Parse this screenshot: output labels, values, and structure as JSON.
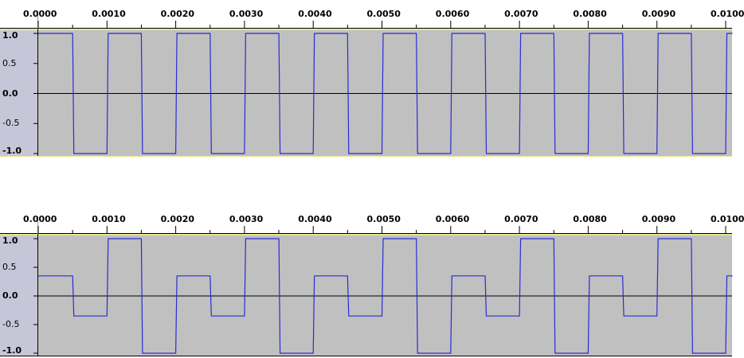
{
  "tracks": [
    {
      "ruler_labels": [
        "0.0000",
        "0.0010",
        "0.0020",
        "0.0030",
        "0.0040",
        "0.0050",
        "0.0060",
        "0.0070",
        "0.0080",
        "0.0090",
        "0.0100"
      ],
      "amplitude_labels": [
        "1.0",
        "0.5",
        "0.0",
        "-0.5",
        "-1.0"
      ],
      "waveform": {
        "type": "square",
        "period_s": 0.001,
        "levels": [
          1.0,
          -1.0
        ]
      }
    },
    {
      "ruler_labels": [
        "0.0000",
        "0.0010",
        "0.0020",
        "0.0030",
        "0.0040",
        "0.0050",
        "0.0060",
        "0.0070",
        "0.0080",
        "0.0090",
        "0.0100"
      ],
      "amplitude_labels": [
        "1.0",
        "0.5",
        "0.0",
        "-0.5",
        "-1.0"
      ],
      "waveform": {
        "type": "stepped",
        "period_s": 0.002,
        "levels": [
          0.35,
          -0.35,
          1.0,
          -1.0
        ]
      }
    }
  ],
  "colors": {
    "track_bg": "#c0c0c0",
    "selection_bg": "#c6c6d8",
    "waveform": "#2b2bd6",
    "zero_line": "#000000",
    "ruler_bg": "#ffffff"
  },
  "time_range": [
    0.0,
    0.0101
  ]
}
